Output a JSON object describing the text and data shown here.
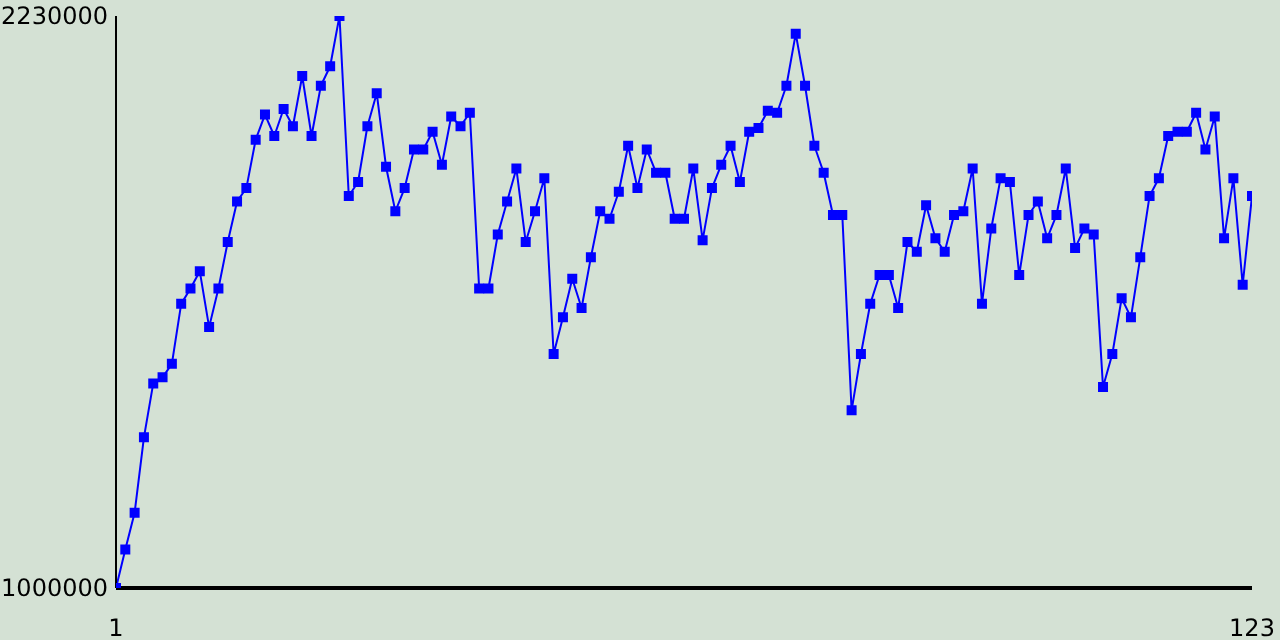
{
  "chart_data": {
    "type": "line",
    "x": [
      1,
      2,
      3,
      4,
      5,
      6,
      7,
      8,
      9,
      10,
      11,
      12,
      13,
      14,
      15,
      16,
      17,
      18,
      19,
      20,
      21,
      22,
      23,
      24,
      25,
      26,
      27,
      28,
      29,
      30,
      31,
      32,
      33,
      34,
      35,
      36,
      37,
      38,
      39,
      40,
      41,
      42,
      43,
      44,
      45,
      46,
      47,
      48,
      49,
      50,
      51,
      52,
      53,
      54,
      55,
      56,
      57,
      58,
      59,
      60,
      61,
      62,
      63,
      64,
      65,
      66,
      67,
      68,
      69,
      70,
      71,
      72,
      73,
      74,
      75,
      76,
      77,
      78,
      79,
      80,
      81,
      82,
      83,
      84,
      85,
      86,
      87,
      88,
      89,
      90,
      91,
      92,
      93,
      94,
      95,
      96,
      97,
      98,
      99,
      100,
      101,
      102,
      103,
      104,
      105,
      106,
      107,
      108,
      109,
      110,
      111,
      112,
      113,
      114,
      115,
      116,
      117,
      118,
      119,
      120,
      121,
      122,
      123
    ],
    "series": [
      {
        "color": "#0000ff",
        "values": [
          1000000,
          1083000,
          1162000,
          1324000,
          1440000,
          1453000,
          1482000,
          1611000,
          1644000,
          1681000,
          1561000,
          1644000,
          1744000,
          1831000,
          1860000,
          1964000,
          2018000,
          1972000,
          2030000,
          1993000,
          2101000,
          1972000,
          2080000,
          2122000,
          2230000,
          1843000,
          1873000,
          1993000,
          2064000,
          1906000,
          1810000,
          1860000,
          1943000,
          1943000,
          1981000,
          1910000,
          2014000,
          1993000,
          2022000,
          1644000,
          1644000,
          1760000,
          1831000,
          1902000,
          1744000,
          1810000,
          1881000,
          1503000,
          1582000,
          1665000,
          1602000,
          1711000,
          1810000,
          1794000,
          1852000,
          1951000,
          1860000,
          1943000,
          1893000,
          1893000,
          1794000,
          1794000,
          1902000,
          1748000,
          1860000,
          1910000,
          1951000,
          1873000,
          1981000,
          1989000,
          2026000,
          2022000,
          2080000,
          2192000,
          2080000,
          1951000,
          1893000,
          1802000,
          1802000,
          1382000,
          1503000,
          1611000,
          1673000,
          1673000,
          1602000,
          1744000,
          1723000,
          1823000,
          1752000,
          1723000,
          1802000,
          1810000,
          1902000,
          1611000,
          1773000,
          1881000,
          1873000,
          1673000,
          1802000,
          1831000,
          1752000,
          1802000,
          1902000,
          1731000,
          1773000,
          1760000,
          1432000,
          1503000,
          1623000,
          1582000,
          1711000,
          1843000,
          1881000,
          1972000,
          1981000,
          1981000,
          2022000,
          1943000,
          2014000,
          1752000,
          1881000,
          1652000,
          1843000
        ]
      }
    ],
    "xlim": [
      1,
      123
    ],
    "xticks": [
      1,
      123
    ],
    "ylim": [
      1000000,
      2230000
    ],
    "yticks": [
      1000000,
      2230000
    ],
    "marker": "square",
    "line_style": "solid"
  }
}
